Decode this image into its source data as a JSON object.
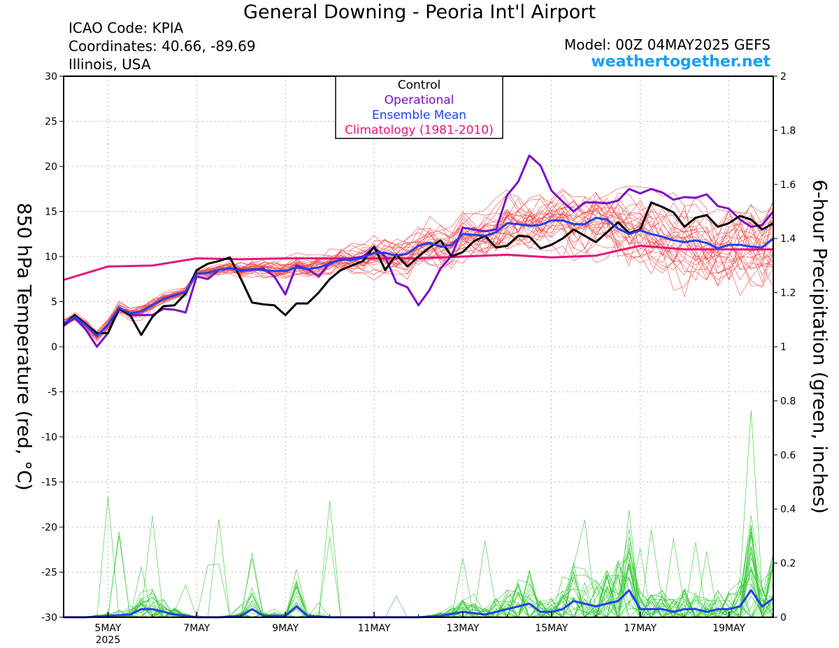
{
  "header": {
    "title": "General Downing - Peoria Int'l Airport",
    "icao": "ICAO Code: KPIA",
    "coordinates": "Coordinates: 40.66, -89.69",
    "region": "Illinois, USA",
    "model": "Model: 00Z 04MAY2025 GEFS",
    "site": "weathertogether.net"
  },
  "colors": {
    "members_temp": "#f04848",
    "members_precip": "#30c830",
    "control": "#000000",
    "operational": "#7b10c8",
    "ensemble_mean": "#2040f0",
    "climatology": "#e8147a",
    "site": "#1a9ff0"
  },
  "chart_data": {
    "type": "line",
    "x_axis": {
      "ticks": [
        {
          "label": "5MAY",
          "day": 5,
          "sublabel": "2025"
        },
        {
          "label": "7MAY",
          "day": 7
        },
        {
          "label": "9MAY",
          "day": 9
        },
        {
          "label": "11MAY",
          "day": 11
        },
        {
          "label": "13MAY",
          "day": 13
        },
        {
          "label": "15MAY",
          "day": 15
        },
        {
          "label": "17MAY",
          "day": 17
        },
        {
          "label": "19MAY",
          "day": 19
        }
      ],
      "xlim_day": [
        4,
        20
      ]
    },
    "y_left": {
      "label": "850 hPa Temperature (red, °C)",
      "ylim": [
        -30,
        30
      ],
      "ticks": [
        "30",
        "25",
        "20",
        "15",
        "10",
        "5",
        "0",
        "-5",
        "-10",
        "-15",
        "-20",
        "-25",
        "-30"
      ],
      "tick_values": [
        30,
        25,
        20,
        15,
        10,
        5,
        0,
        -5,
        -10,
        -15,
        -20,
        -25,
        -30
      ]
    },
    "y_right": {
      "label": "6-hour Precipitation (green, inches)",
      "ylim": [
        0,
        2
      ],
      "ticks": [
        "2",
        "1.8",
        "1.6",
        "1.4",
        "1.2",
        "1",
        "0.8",
        "0.6",
        "0.4",
        "0.2",
        "0"
      ],
      "tick_values": [
        2,
        1.8,
        1.6,
        1.4,
        1.2,
        1,
        0.8,
        0.6,
        0.4,
        0.2,
        0
      ]
    },
    "grid": true,
    "legend": {
      "position": "top-center",
      "entries": [
        {
          "label": "Control",
          "color": "#000000"
        },
        {
          "label": "Operational",
          "color": "#7b10c8"
        },
        {
          "label": "Ensemble Mean",
          "color": "#2040f0"
        },
        {
          "label": "Climatology (1981-2010)",
          "color": "#e8147a"
        }
      ]
    },
    "series": [
      {
        "name": "Control",
        "axis": "left",
        "points": [
          [
            4,
            2.5
          ],
          [
            4.25,
            3.5
          ],
          [
            4.5,
            2.5
          ],
          [
            4.75,
            1.5
          ],
          [
            5,
            1.5
          ],
          [
            5.25,
            4.2
          ],
          [
            5.5,
            3.5
          ],
          [
            5.75,
            1.3
          ],
          [
            6,
            3.3
          ],
          [
            6.25,
            4.5
          ],
          [
            6.5,
            4.6
          ],
          [
            6.75,
            5.9
          ],
          [
            7,
            8.5
          ],
          [
            7.25,
            9.2
          ],
          [
            7.5,
            9.5
          ],
          [
            7.75,
            9.9
          ],
          [
            8,
            7.5
          ],
          [
            8.25,
            4.9
          ],
          [
            8.5,
            4.7
          ],
          [
            8.75,
            4.6
          ],
          [
            9,
            3.5
          ],
          [
            9.25,
            4.8
          ],
          [
            9.5,
            4.8
          ],
          [
            9.75,
            6
          ],
          [
            10,
            7.5
          ],
          [
            10.25,
            8.5
          ],
          [
            10.5,
            9
          ],
          [
            10.75,
            9.5
          ],
          [
            11,
            11.1
          ],
          [
            11.25,
            8.5
          ],
          [
            11.5,
            10.2
          ],
          [
            11.75,
            8.9
          ],
          [
            12,
            10
          ],
          [
            12.25,
            11
          ],
          [
            12.5,
            11.8
          ],
          [
            12.75,
            10
          ],
          [
            13,
            10.5
          ],
          [
            13.25,
            11.7
          ],
          [
            13.5,
            12.3
          ],
          [
            13.75,
            11
          ],
          [
            14,
            11.2
          ],
          [
            14.25,
            12.3
          ],
          [
            14.5,
            12.2
          ],
          [
            14.75,
            10.9
          ],
          [
            15,
            11.3
          ],
          [
            15.25,
            12
          ],
          [
            15.5,
            13
          ],
          [
            15.75,
            12.3
          ],
          [
            16,
            11.6
          ],
          [
            16.25,
            12.7
          ],
          [
            16.5,
            13.8
          ],
          [
            16.75,
            12.6
          ],
          [
            17,
            13
          ],
          [
            17.25,
            16
          ],
          [
            17.5,
            15.5
          ],
          [
            17.75,
            14.9
          ],
          [
            18,
            13.3
          ],
          [
            18.25,
            14.3
          ],
          [
            18.5,
            14.6
          ],
          [
            18.75,
            13.3
          ],
          [
            19,
            13.7
          ],
          [
            19.25,
            14.5
          ],
          [
            19.5,
            14.1
          ],
          [
            19.75,
            13
          ],
          [
            20,
            13.7
          ]
        ]
      },
      {
        "name": "Operational",
        "axis": "left",
        "points": [
          [
            4,
            2.3
          ],
          [
            4.25,
            3.2
          ],
          [
            4.5,
            1.9
          ],
          [
            4.75,
            0
          ],
          [
            5,
            1.5
          ],
          [
            5.25,
            4.3
          ],
          [
            5.5,
            3.5
          ],
          [
            5.75,
            3.5
          ],
          [
            6,
            3.5
          ],
          [
            6.25,
            4.2
          ],
          [
            6.5,
            4.1
          ],
          [
            6.75,
            3.8
          ],
          [
            7,
            7.8
          ],
          [
            7.25,
            7.5
          ],
          [
            7.5,
            8.5
          ],
          [
            7.75,
            8.7
          ],
          [
            8,
            8.5
          ],
          [
            8.25,
            8.5
          ],
          [
            8.5,
            8.7
          ],
          [
            8.75,
            7.8
          ],
          [
            9,
            5.8
          ],
          [
            9.25,
            9
          ],
          [
            9.5,
            8.6
          ],
          [
            9.75,
            7.8
          ],
          [
            10,
            9.3
          ],
          [
            10.25,
            9.6
          ],
          [
            10.5,
            9.8
          ],
          [
            10.75,
            10
          ],
          [
            11,
            11
          ],
          [
            11.25,
            10
          ],
          [
            11.5,
            7.1
          ],
          [
            11.75,
            6.6
          ],
          [
            12,
            4.6
          ],
          [
            12.25,
            6.3
          ],
          [
            12.5,
            8.7
          ],
          [
            12.75,
            10.1
          ],
          [
            13,
            13.2
          ],
          [
            13.25,
            13
          ],
          [
            13.5,
            12.8
          ],
          [
            13.75,
            13
          ],
          [
            14,
            16.8
          ],
          [
            14.25,
            18.3
          ],
          [
            14.5,
            21.2
          ],
          [
            14.75,
            20.1
          ],
          [
            15,
            17.3
          ],
          [
            15.25,
            16.1
          ],
          [
            15.5,
            15
          ],
          [
            15.75,
            16
          ],
          [
            16,
            16
          ],
          [
            16.25,
            15.9
          ],
          [
            16.5,
            16.2
          ],
          [
            16.75,
            17.5
          ],
          [
            17,
            17
          ],
          [
            17.25,
            17.5
          ],
          [
            17.5,
            17.1
          ],
          [
            17.75,
            16.3
          ],
          [
            18,
            16.6
          ],
          [
            18.25,
            16.5
          ],
          [
            18.5,
            16.9
          ],
          [
            18.75,
            15.6
          ],
          [
            19,
            15.3
          ],
          [
            19.25,
            14.1
          ],
          [
            19.5,
            13.3
          ],
          [
            19.75,
            13.5
          ],
          [
            20,
            15
          ]
        ]
      },
      {
        "name": "Ensemble Mean",
        "axis": "left",
        "points": [
          [
            4,
            2.6
          ],
          [
            4.25,
            3.3
          ],
          [
            4.5,
            2.4
          ],
          [
            4.75,
            1.2
          ],
          [
            5,
            2.4
          ],
          [
            5.25,
            4.3
          ],
          [
            5.5,
            3.7
          ],
          [
            5.75,
            3.9
          ],
          [
            6,
            4.6
          ],
          [
            6.25,
            5.3
          ],
          [
            6.5,
            5.7
          ],
          [
            6.75,
            6.1
          ],
          [
            7,
            8.1
          ],
          [
            7.25,
            8.2
          ],
          [
            7.5,
            8.5
          ],
          [
            7.75,
            8.7
          ],
          [
            8,
            8.4
          ],
          [
            8.25,
            8.6
          ],
          [
            8.5,
            8.5
          ],
          [
            8.75,
            8.4
          ],
          [
            9,
            8.4
          ],
          [
            9.25,
            8.8
          ],
          [
            9.5,
            8.6
          ],
          [
            9.75,
            8.8
          ],
          [
            10,
            9.2
          ],
          [
            10.25,
            9.7
          ],
          [
            10.5,
            9.6
          ],
          [
            10.75,
            9.9
          ],
          [
            11,
            10.4
          ],
          [
            11.25,
            10.4
          ],
          [
            11.5,
            10.1
          ],
          [
            11.75,
            10.3
          ],
          [
            12,
            11.2
          ],
          [
            12.25,
            11.5
          ],
          [
            12.5,
            11.1
          ],
          [
            12.75,
            11.3
          ],
          [
            13,
            12.5
          ],
          [
            13.25,
            12.4
          ],
          [
            13.5,
            12.3
          ],
          [
            13.75,
            12.7
          ],
          [
            14,
            13.7
          ],
          [
            14.25,
            13.6
          ],
          [
            14.5,
            13.4
          ],
          [
            14.75,
            13.5
          ],
          [
            15,
            14
          ],
          [
            15.25,
            14
          ],
          [
            15.5,
            13.6
          ],
          [
            15.75,
            13.6
          ],
          [
            16,
            14.3
          ],
          [
            16.25,
            14.1
          ],
          [
            16.5,
            13.1
          ],
          [
            16.75,
            12.5
          ],
          [
            17,
            12.9
          ],
          [
            17.25,
            12.5
          ],
          [
            17.5,
            12.2
          ],
          [
            17.75,
            11.8
          ],
          [
            18,
            11.6
          ],
          [
            18.25,
            11.8
          ],
          [
            18.5,
            11.5
          ],
          [
            18.75,
            10.9
          ],
          [
            19,
            11.3
          ],
          [
            19.25,
            11.3
          ],
          [
            19.5,
            11.1
          ],
          [
            19.75,
            11
          ],
          [
            20,
            12
          ]
        ]
      },
      {
        "name": "Climatology (1981-2010)",
        "axis": "left",
        "points": [
          [
            4,
            7.4
          ],
          [
            5,
            8.9
          ],
          [
            6,
            9.0
          ],
          [
            7,
            9.8
          ],
          [
            8,
            9.7
          ],
          [
            9,
            9.8
          ],
          [
            10,
            9.8
          ],
          [
            11,
            9.8
          ],
          [
            12,
            9.8
          ],
          [
            13,
            10.0
          ],
          [
            14,
            10.2
          ],
          [
            15,
            9.9
          ],
          [
            16,
            10.1
          ],
          [
            17,
            11.2
          ],
          [
            18,
            10.8
          ],
          [
            19,
            10.8
          ],
          [
            20,
            10.8
          ]
        ]
      },
      {
        "name": "Ensemble Mean",
        "axis": "right",
        "points": [
          [
            4,
            0
          ],
          [
            4.5,
            0
          ],
          [
            5,
            0.005
          ],
          [
            5.5,
            0.01
          ],
          [
            5.75,
            0.03
          ],
          [
            6,
            0.03
          ],
          [
            6.5,
            0.01
          ],
          [
            7,
            0
          ],
          [
            7.5,
            0
          ],
          [
            8,
            0.005
          ],
          [
            8.25,
            0.03
          ],
          [
            8.5,
            0.005
          ],
          [
            9,
            0.005
          ],
          [
            9.25,
            0.04
          ],
          [
            9.5,
            0.005
          ],
          [
            10,
            0
          ],
          [
            11,
            0
          ],
          [
            12,
            0
          ],
          [
            12.5,
            0.005
          ],
          [
            13,
            0.02
          ],
          [
            13.5,
            0.01
          ],
          [
            14,
            0.03
          ],
          [
            14.25,
            0.04
          ],
          [
            14.5,
            0.05
          ],
          [
            14.75,
            0.02
          ],
          [
            15,
            0.02
          ],
          [
            15.25,
            0.03
          ],
          [
            15.5,
            0.06
          ],
          [
            15.75,
            0.05
          ],
          [
            16,
            0.04
          ],
          [
            16.25,
            0.05
          ],
          [
            16.5,
            0.06
          ],
          [
            16.75,
            0.1
          ],
          [
            17,
            0.03
          ],
          [
            17.25,
            0.03
          ],
          [
            17.5,
            0.03
          ],
          [
            17.75,
            0.02
          ],
          [
            18,
            0.03
          ],
          [
            18.25,
            0.03
          ],
          [
            18.5,
            0.02
          ],
          [
            18.75,
            0.03
          ],
          [
            19,
            0.03
          ],
          [
            19.25,
            0.04
          ],
          [
            19.5,
            0.1
          ],
          [
            19.75,
            0.04
          ],
          [
            20,
            0.07
          ]
        ]
      }
    ],
    "member_bands": [
      {
        "variable": "temperature",
        "axis": "left",
        "members": 30,
        "range_min_C": 0,
        "range_max_C": 22.8
      },
      {
        "variable": "precipitation",
        "axis": "right",
        "members": 30,
        "range_min_in": 0,
        "range_max_in": 0.93
      }
    ]
  }
}
